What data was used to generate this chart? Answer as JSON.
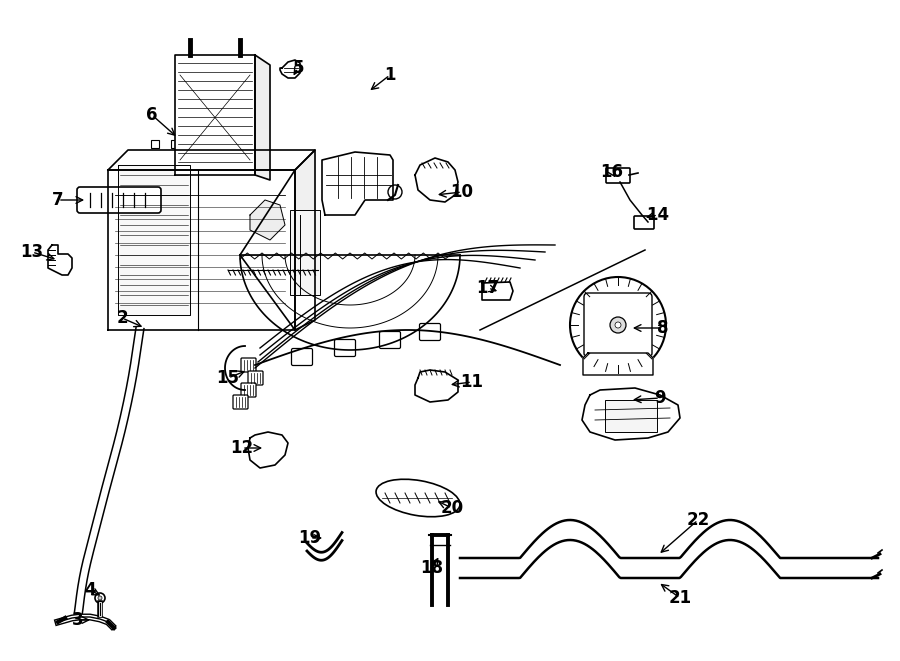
{
  "bg_color": "#ffffff",
  "figsize": [
    9.0,
    6.61
  ],
  "dpi": 100,
  "labels": [
    [
      "1",
      390,
      75,
      368,
      92
    ],
    [
      "2",
      122,
      318,
      145,
      328
    ],
    [
      "3",
      78,
      620,
      93,
      620
    ],
    [
      "4",
      90,
      590,
      103,
      597
    ],
    [
      "5",
      298,
      68,
      292,
      78
    ],
    [
      "6",
      152,
      115,
      178,
      138
    ],
    [
      "7",
      58,
      200,
      87,
      200
    ],
    [
      "8",
      663,
      328,
      630,
      328
    ],
    [
      "9",
      660,
      398,
      630,
      400
    ],
    [
      "10",
      462,
      192,
      435,
      195
    ],
    [
      "11",
      472,
      382,
      448,
      385
    ],
    [
      "12",
      242,
      448,
      265,
      448
    ],
    [
      "13",
      32,
      252,
      58,
      260
    ],
    [
      "14",
      658,
      215,
      643,
      218
    ],
    [
      "15",
      228,
      378,
      248,
      370
    ],
    [
      "16",
      612,
      172,
      617,
      180
    ],
    [
      "17",
      488,
      288,
      500,
      292
    ],
    [
      "18",
      432,
      568,
      440,
      555
    ],
    [
      "19",
      310,
      538,
      325,
      538
    ],
    [
      "20",
      452,
      508,
      435,
      500
    ],
    [
      "21",
      680,
      598,
      658,
      582
    ],
    [
      "22",
      698,
      520,
      658,
      555
    ]
  ]
}
